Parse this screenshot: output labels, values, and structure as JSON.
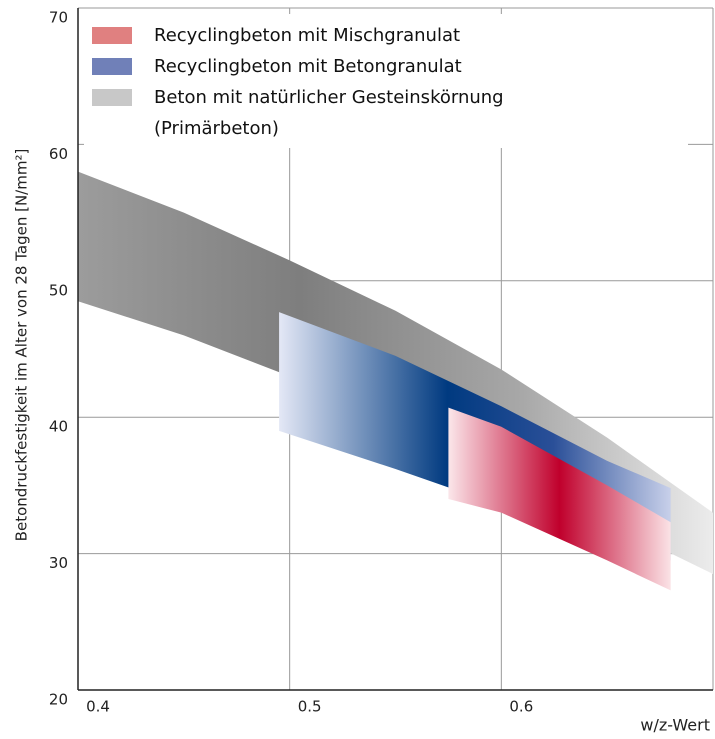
{
  "chart_data": {
    "type": "band",
    "x_label": "w/z-Wert",
    "y_label": "Betondruckfestigkeit im Alter von 28 Tagen [N/mm²]",
    "xlim": [
      0.4,
      0.7
    ],
    "ylim": [
      20,
      70
    ],
    "xticks": [
      0.4,
      0.5,
      0.6,
      0.7
    ],
    "yticks": [
      20,
      30,
      40,
      50,
      60,
      70
    ],
    "grid": true,
    "legend": "top-left",
    "series": [
      {
        "name": "Beton mit natürlicher Gesteinskörnung (Primärbeton)",
        "color": "#c8c8c8",
        "x": [
          0.4,
          0.45,
          0.5,
          0.55,
          0.6,
          0.65,
          0.7
        ],
        "upper": [
          58,
          55,
          51.5,
          47.8,
          43.5,
          38.5,
          33
        ],
        "lower": [
          48.5,
          46,
          43,
          39.8,
          36,
          32.3,
          28.5
        ]
      },
      {
        "name": "Recyclingbeton mit Betongranulat",
        "color": "#7080b8",
        "x": [
          0.495,
          0.55,
          0.6,
          0.65,
          0.68
        ],
        "upper": [
          47.7,
          44.5,
          40.8,
          36.8,
          34.8
        ],
        "lower": [
          39,
          36.2,
          33.5,
          31,
          29.5
        ]
      },
      {
        "name": "Recyclingbeton mit Mischgranulat",
        "color": "#e08080",
        "x": [
          0.575,
          0.6,
          0.65,
          0.68
        ],
        "upper": [
          40.7,
          39.3,
          35,
          32.3
        ],
        "lower": [
          34,
          33,
          29.5,
          27.3
        ]
      }
    ]
  }
}
